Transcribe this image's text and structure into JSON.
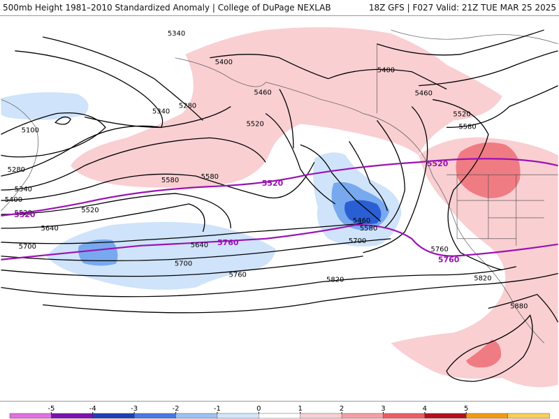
{
  "header": {
    "left_title": "500mb Height 1981–2010 Standardized Anomaly | College of DuPage NEXLAB",
    "right_title": "18Z GFS | F027 Valid: 21Z TUE MAR 25 2025"
  },
  "contour_labels": [
    "5340",
    "5400",
    "5280",
    "5340",
    "5100",
    "5460",
    "5520",
    "5280",
    "5340",
    "5400",
    "5520",
    "5580",
    "5580",
    "5520",
    "5640",
    "5700",
    "5700",
    "5640",
    "5760",
    "5460",
    "5580",
    "5700",
    "5820",
    "5760",
    "5820",
    "5400",
    "5460",
    "5520",
    "5580",
    "5880",
    "5760"
  ],
  "reference_labels": [
    "5520",
    "5520",
    "5520",
    "5760",
    "5760"
  ],
  "colorbar": {
    "ticks": [
      "-5",
      "-4",
      "-3",
      "-2",
      "-1",
      "0",
      "1",
      "2",
      "3",
      "4",
      "5"
    ],
    "colors": [
      "#e26fe0",
      "#7a12b0",
      "#1e3fb5",
      "#4a77e5",
      "#9cc2f2",
      "#d3e6fb",
      "#ffffff",
      "#f9cfd2",
      "#f5a0a6",
      "#ec5c64",
      "#b50f1e",
      "#f29a12",
      "#f7cf5a"
    ]
  },
  "anomaly_colors": {
    "neg_light": "#cfe3fa",
    "neg_mid": "#78a9ef",
    "neg_strong": "#2a5fd4",
    "pos_light": "#f9cfd2",
    "pos_mid": "#f07c83",
    "ref_line": "#9a12b3"
  }
}
